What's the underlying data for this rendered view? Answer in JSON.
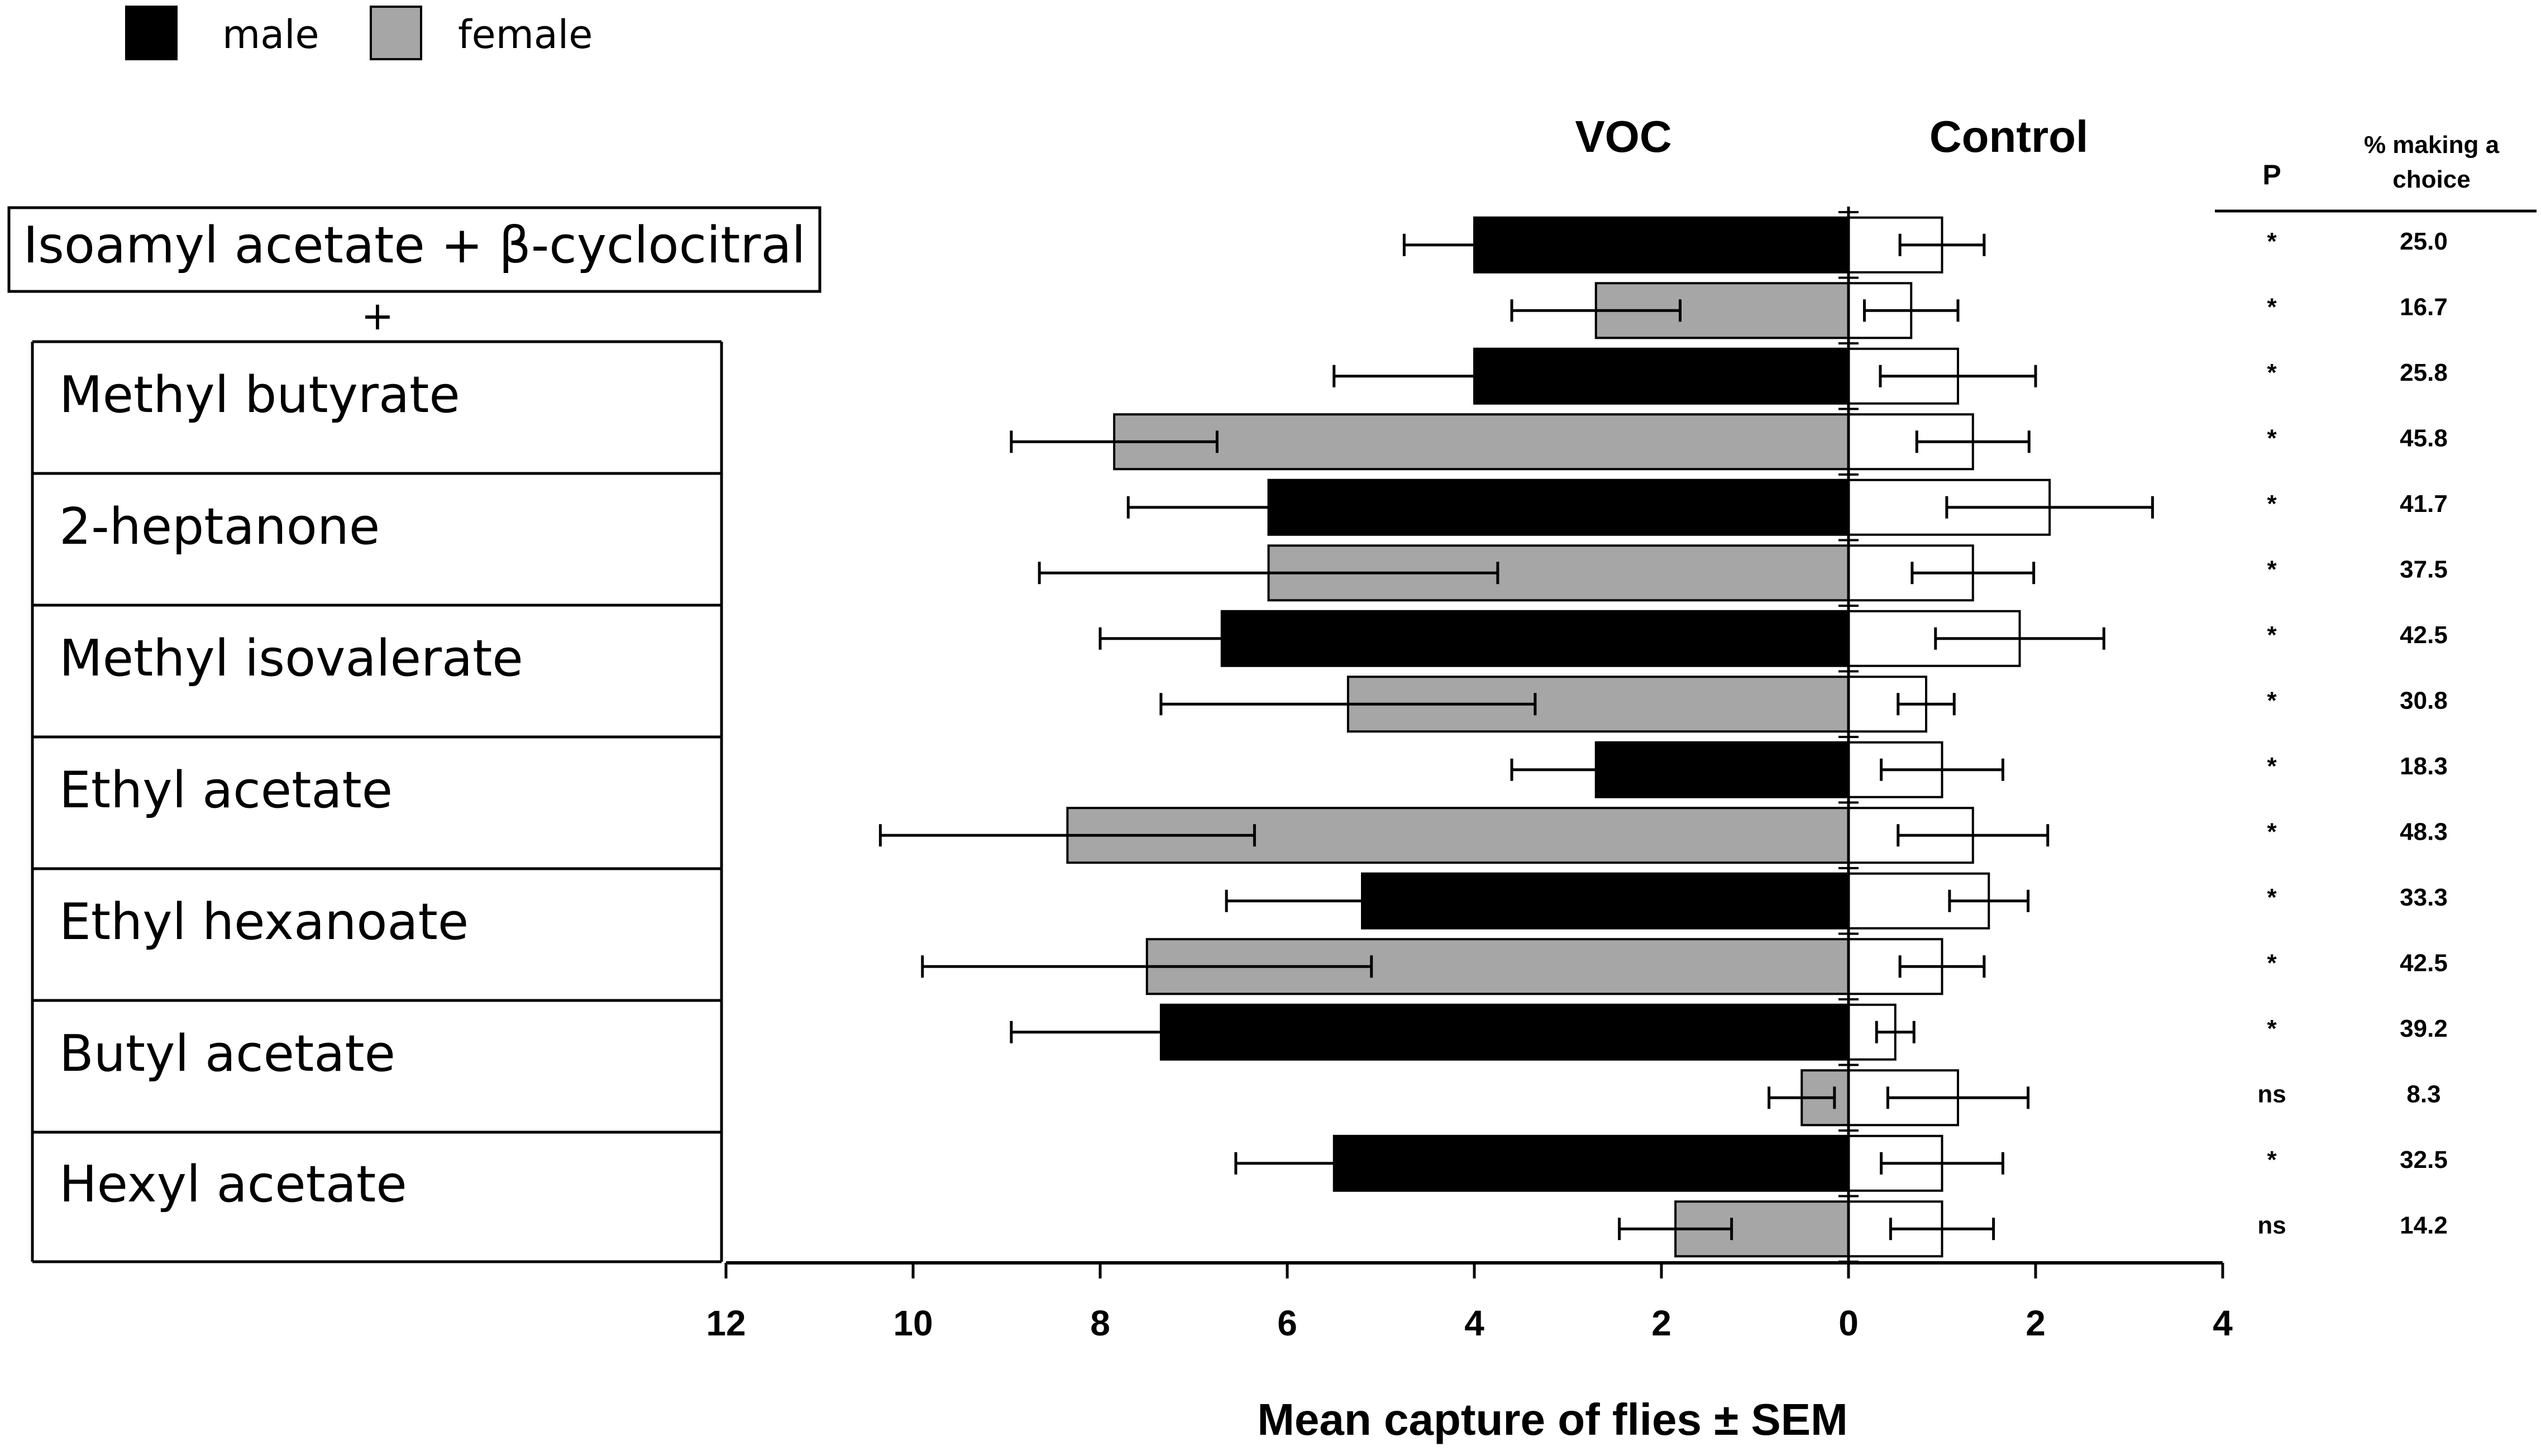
{
  "chart_data": {
    "type": "bar",
    "orientation": "horizontal-back-to-back",
    "legend": [
      {
        "name": "male",
        "color": "#000000"
      },
      {
        "name": "female",
        "color": "#a6a6a6"
      }
    ],
    "left_header": "VOC",
    "right_header": "Control",
    "xlabel": "Mean capture of flies ± SEM",
    "xlim": [
      -12,
      4
    ],
    "x_ticks": [
      "12",
      "10",
      "8",
      "6",
      "4",
      "2",
      "0",
      "2",
      "4"
    ],
    "col_p_header": "P",
    "col_pct_header_line1": "% making a",
    "col_pct_header_line2": "choice",
    "boxed_label": "Isoamyl acetate + β-cyclocitral",
    "plus_sign": "+",
    "treatments": [
      {
        "label": "Methyl butyrate"
      },
      {
        "label": "2-heptanone"
      },
      {
        "label": "Methyl isovalerate"
      },
      {
        "label": "Ethyl acetate"
      },
      {
        "label": "Ethyl hexanoate"
      },
      {
        "label": "Butyl acetate"
      },
      {
        "label": "Hexyl acetate"
      }
    ],
    "rows": [
      {
        "sex": "male",
        "voc": 4.0,
        "voc_sem": 0.75,
        "control": 1.0,
        "control_sem": 0.45,
        "p": "*",
        "pct": "25.0"
      },
      {
        "sex": "female",
        "voc": 2.7,
        "voc_sem": 0.9,
        "control": 0.67,
        "control_sem": 0.5,
        "p": "*",
        "pct": "16.7"
      },
      {
        "sex": "male",
        "voc": 4.0,
        "voc_sem": 1.5,
        "control": 1.17,
        "control_sem": 0.83,
        "p": "*",
        "pct": "25.8"
      },
      {
        "sex": "female",
        "voc": 7.85,
        "voc_sem": 1.1,
        "control": 1.33,
        "control_sem": 0.6,
        "p": "*",
        "pct": "45.8"
      },
      {
        "sex": "male",
        "voc": 6.2,
        "voc_sem": 1.5,
        "control": 2.15,
        "control_sem": 1.1,
        "p": "*",
        "pct": "41.7"
      },
      {
        "sex": "female",
        "voc": 6.2,
        "voc_sem": 2.45,
        "control": 1.33,
        "control_sem": 0.65,
        "p": "*",
        "pct": "37.5"
      },
      {
        "sex": "male",
        "voc": 6.7,
        "voc_sem": 1.3,
        "control": 1.83,
        "control_sem": 0.9,
        "p": "*",
        "pct": "42.5"
      },
      {
        "sex": "female",
        "voc": 5.35,
        "voc_sem": 2.0,
        "control": 0.83,
        "control_sem": 0.3,
        "p": "*",
        "pct": "30.8"
      },
      {
        "sex": "male",
        "voc": 2.7,
        "voc_sem": 0.9,
        "control": 1.0,
        "control_sem": 0.65,
        "p": "*",
        "pct": "18.3"
      },
      {
        "sex": "female",
        "voc": 8.35,
        "voc_sem": 2.0,
        "control": 1.33,
        "control_sem": 0.8,
        "p": "*",
        "pct": "48.3"
      },
      {
        "sex": "male",
        "voc": 5.2,
        "voc_sem": 1.45,
        "control": 1.5,
        "control_sem": 0.42,
        "p": "*",
        "pct": "33.3"
      },
      {
        "sex": "female",
        "voc": 7.5,
        "voc_sem": 2.4,
        "control": 1.0,
        "control_sem": 0.45,
        "p": "*",
        "pct": "42.5"
      },
      {
        "sex": "male",
        "voc": 7.35,
        "voc_sem": 1.6,
        "control": 0.5,
        "control_sem": 0.2,
        "p": "*",
        "pct": "39.2"
      },
      {
        "sex": "female",
        "voc": 0.5,
        "voc_sem": 0.35,
        "control": 1.17,
        "control_sem": 0.75,
        "p": "ns",
        "pct": "8.3"
      },
      {
        "sex": "male",
        "voc": 5.5,
        "voc_sem": 1.05,
        "control": 1.0,
        "control_sem": 0.65,
        "p": "*",
        "pct": "32.5"
      },
      {
        "sex": "female",
        "voc": 1.85,
        "voc_sem": 0.6,
        "control": 1.0,
        "control_sem": 0.55,
        "p": "ns",
        "pct": "14.2"
      }
    ]
  }
}
